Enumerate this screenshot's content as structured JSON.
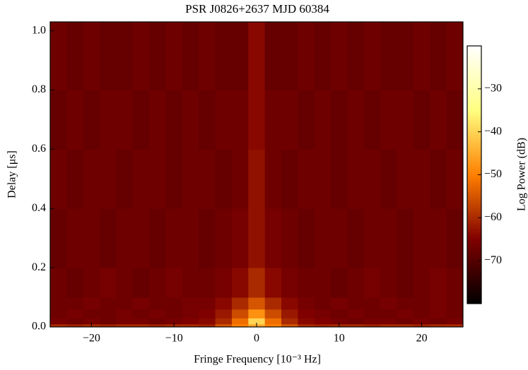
{
  "chart_data": {
    "type": "heatmap",
    "title": "PSR J0826+2637 MJD 60384",
    "x_label": "Fringe Frequency [10⁻³ Hz]",
    "y_label": "Delay [μs]",
    "colorbar_label": "Log Power (dB)",
    "colormap": "afmhot",
    "x_edges": [
      -25,
      -23,
      -21,
      -19,
      -17,
      -15,
      -13,
      -11,
      -9,
      -7,
      -5,
      -3,
      -1,
      1,
      3,
      5,
      7,
      9,
      11,
      13,
      15,
      17,
      19,
      21,
      23,
      25
    ],
    "y_edges": [
      0,
      0.01,
      0.03,
      0.06,
      0.1,
      0.2,
      0.4,
      0.6,
      0.8,
      1.03
    ],
    "z": [
      [
        -60,
        -61,
        -60,
        -61,
        -60,
        -60,
        -61,
        -60,
        -60,
        -61,
        -55,
        -50,
        -45,
        -50,
        -55,
        -60,
        -61,
        -60,
        -60,
        -61,
        -60,
        -60,
        -61,
        -60,
        -60
      ],
      [
        -66,
        -67,
        -66,
        -67,
        -66,
        -66,
        -67,
        -66,
        -65,
        -64,
        -60,
        -52,
        -40,
        -52,
        -60,
        -64,
        -65,
        -66,
        -67,
        -66,
        -66,
        -67,
        -66,
        -67,
        -66
      ],
      [
        -67,
        -66,
        -67,
        -67,
        -66,
        -67,
        -66,
        -67,
        -66,
        -65,
        -62,
        -56,
        -48,
        -56,
        -62,
        -65,
        -66,
        -67,
        -66,
        -67,
        -67,
        -66,
        -67,
        -66,
        -67
      ],
      [
        -67,
        -67,
        -66,
        -67,
        -67,
        -66,
        -67,
        -67,
        -66,
        -66,
        -64,
        -60,
        -55,
        -60,
        -64,
        -66,
        -67,
        -66,
        -67,
        -67,
        -66,
        -67,
        -67,
        -66,
        -67
      ],
      [
        -67,
        -68,
        -67,
        -66,
        -67,
        -68,
        -67,
        -66,
        -67,
        -67,
        -66,
        -64,
        -60,
        -64,
        -66,
        -67,
        -67,
        -68,
        -67,
        -66,
        -67,
        -68,
        -67,
        -66,
        -67
      ],
      [
        -68,
        -67,
        -67,
        -68,
        -67,
        -67,
        -68,
        -67,
        -67,
        -68,
        -67,
        -66,
        -63,
        -66,
        -67,
        -68,
        -67,
        -67,
        -68,
        -67,
        -67,
        -68,
        -67,
        -67,
        -68
      ],
      [
        -67,
        -68,
        -67,
        -67,
        -68,
        -67,
        -67,
        -68,
        -67,
        -67,
        -68,
        -67,
        -63,
        -67,
        -68,
        -67,
        -67,
        -68,
        -67,
        -67,
        -68,
        -67,
        -67,
        -68,
        -67
      ],
      [
        -68,
        -67,
        -68,
        -67,
        -67,
        -68,
        -67,
        -68,
        -67,
        -68,
        -67,
        -67,
        -64,
        -67,
        -67,
        -68,
        -67,
        -68,
        -67,
        -68,
        -67,
        -67,
        -68,
        -67,
        -68
      ],
      [
        -67,
        -68,
        -67,
        -68,
        -68,
        -67,
        -68,
        -67,
        -68,
        -67,
        -68,
        -68,
        -64,
        -68,
        -68,
        -67,
        -68,
        -67,
        -68,
        -67,
        -68,
        -68,
        -67,
        -68,
        -67
      ]
    ],
    "xlim": [
      -25,
      25
    ],
    "ylim": [
      0,
      1.03
    ],
    "clim": [
      -80,
      -20
    ],
    "xticks": [
      {
        "value": -20,
        "label": "−20"
      },
      {
        "value": -10,
        "label": "−10"
      },
      0,
      10,
      20
    ],
    "yticks": [
      {
        "value": 0,
        "label": "0.0"
      },
      0.2,
      0.4,
      0.6,
      0.8,
      {
        "value": 1,
        "label": "1.0"
      }
    ],
    "cticks": [
      {
        "value": -30,
        "label": "−30"
      },
      {
        "value": -40,
        "label": "−40"
      },
      {
        "value": -50,
        "label": "−50"
      },
      {
        "value": -60,
        "label": "−60"
      },
      {
        "value": -70,
        "label": "−70"
      }
    ]
  }
}
